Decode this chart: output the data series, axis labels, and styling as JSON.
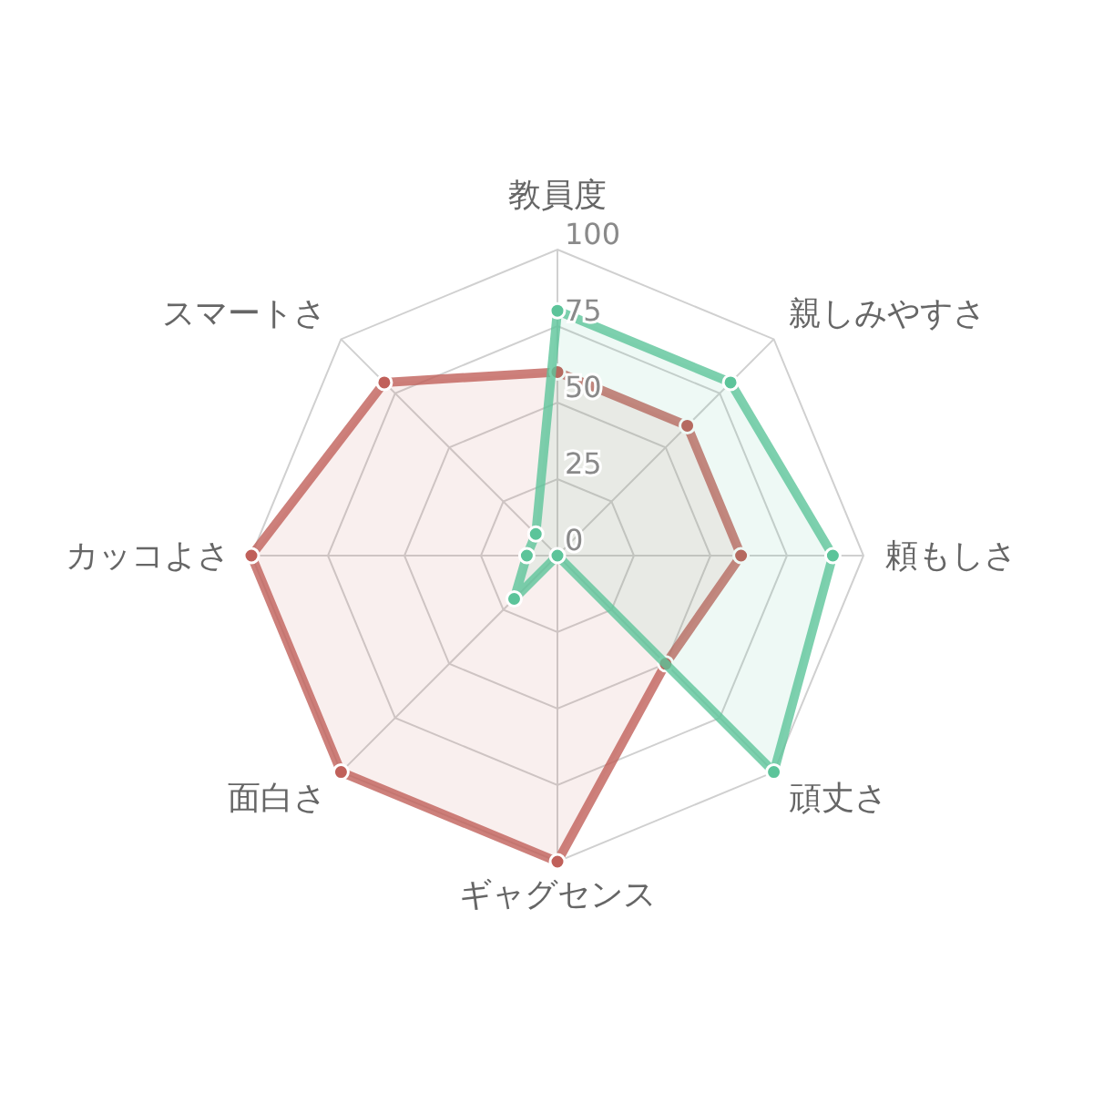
{
  "chart_data": {
    "type": "radar",
    "categories": [
      "教員度",
      "親しみやすさ",
      "頼もしさ",
      "頑丈さ",
      "ギャグセンス",
      "面白さ",
      "カッコよさ",
      "スマートさ"
    ],
    "ylim": [
      0,
      100
    ],
    "yticks": [
      0,
      25,
      50,
      75,
      100
    ],
    "grid": true,
    "marker": "circle",
    "line_style": "solid",
    "series": [
      {
        "color": "#c0605a",
        "values": [
          60,
          60,
          60,
          50,
          100,
          100,
          100,
          80
        ]
      },
      {
        "color": "#5cc49a",
        "values": [
          80,
          80,
          90,
          100,
          0,
          20,
          10,
          10
        ]
      }
    ]
  }
}
